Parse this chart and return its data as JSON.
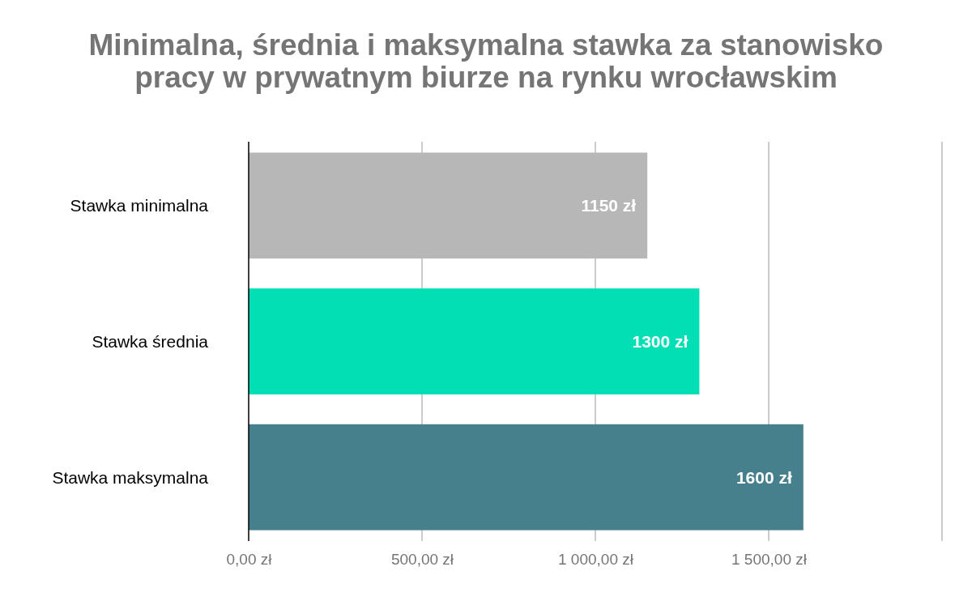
{
  "chart_data": {
    "type": "bar",
    "orientation": "horizontal",
    "title": "Minimalna, średnia i maksymalna stawka za stanowisko pracy w prywatnym biurze na rynku wrocławskim",
    "categories": [
      "Stawka minimalna",
      "Stawka średnia",
      "Stawka maksymalna"
    ],
    "values": [
      1150,
      1300,
      1600
    ],
    "colors": [
      "#b7b7b7",
      "#03dfb5",
      "#46808c"
    ],
    "value_labels": [
      "1150 zł",
      "1300 zł",
      "1600 zł"
    ],
    "xlim": [
      0,
      2000
    ],
    "xticks": [
      {
        "value": 0,
        "label": "0,00 zł"
      },
      {
        "value": 500,
        "label": "500,00 zł"
      },
      {
        "value": 1000,
        "label": "1 000,00 zł"
      },
      {
        "value": 1500,
        "label": "1 500,00 zł"
      },
      {
        "value": 2000,
        "label": null
      }
    ],
    "grid": "x"
  }
}
